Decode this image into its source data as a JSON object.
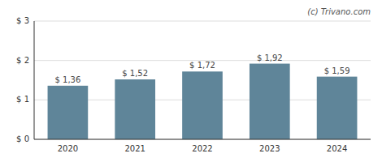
{
  "chart_data": {
    "type": "bar",
    "categories": [
      "2020",
      "2021",
      "2022",
      "2023",
      "2024"
    ],
    "values": [
      1.36,
      1.52,
      1.72,
      1.92,
      1.59
    ],
    "value_labels": [
      "$ 1,36",
      "$ 1,52",
      "$ 1,72",
      "$ 1,92",
      "$ 1,59"
    ],
    "color": "#5f8599",
    "ylim": [
      0,
      3
    ],
    "yticks": [
      {
        "value": 0,
        "label": "$ 0"
      },
      {
        "value": 1,
        "label": "$ 1"
      },
      {
        "value": 2,
        "label": "$ 2"
      },
      {
        "value": 3,
        "label": "$ 3"
      }
    ],
    "grid": true,
    "data_labels": true,
    "annotations": [
      "(c) Trivano.com"
    ]
  }
}
